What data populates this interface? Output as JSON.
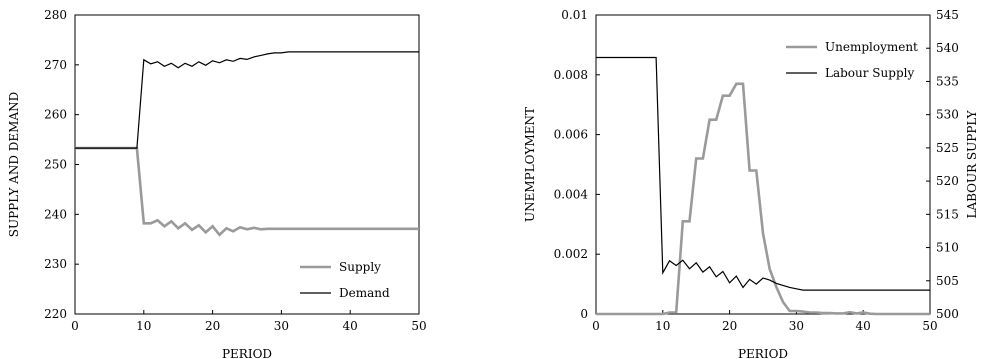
{
  "chart_data": [
    {
      "type": "line",
      "xlabel": "PERIOD",
      "ylabel": "SUPPLY AND DEMAND",
      "xlim": [
        0,
        50
      ],
      "ylim": [
        220,
        280
      ],
      "xticks": [
        "0",
        "10",
        "20",
        "30",
        "40",
        "50"
      ],
      "yticks": [
        "220",
        "230",
        "240",
        "250",
        "260",
        "270",
        "280"
      ],
      "grid": false,
      "legend_position": "bottom-right",
      "series": [
        {
          "name": "Supply",
          "color": "#9a9a9a",
          "x": [
            0,
            1,
            2,
            3,
            4,
            5,
            6,
            7,
            8,
            9,
            10,
            11,
            12,
            13,
            14,
            15,
            16,
            17,
            18,
            19,
            20,
            21,
            22,
            23,
            24,
            25,
            26,
            27,
            28,
            29,
            30,
            31,
            32,
            33,
            34,
            35,
            36,
            37,
            38,
            39,
            40,
            41,
            42,
            43,
            44,
            45,
            46,
            47,
            48,
            49,
            50
          ],
          "y": [
            253.3,
            253.3,
            253.3,
            253.3,
            253.3,
            253.3,
            253.3,
            253.3,
            253.3,
            253.3,
            238.2,
            238.2,
            238.8,
            237.6,
            238.6,
            237.2,
            238.2,
            236.9,
            237.8,
            236.4,
            237.6,
            235.9,
            237.2,
            236.6,
            237.4,
            237.0,
            237.3,
            237.0,
            237.1,
            237.1,
            237.1,
            237.1,
            237.1,
            237.1,
            237.1,
            237.1,
            237.1,
            237.1,
            237.1,
            237.1,
            237.1,
            237.1,
            237.1,
            237.1,
            237.1,
            237.1,
            237.1,
            237.1,
            237.1,
            237.1,
            237.1
          ]
        },
        {
          "name": "Demand",
          "color": "#000000",
          "x": [
            0,
            1,
            2,
            3,
            4,
            5,
            6,
            7,
            8,
            9,
            10,
            11,
            12,
            13,
            14,
            15,
            16,
            17,
            18,
            19,
            20,
            21,
            22,
            23,
            24,
            25,
            26,
            27,
            28,
            29,
            30,
            31,
            32,
            33,
            34,
            35,
            36,
            37,
            38,
            39,
            40,
            41,
            42,
            43,
            44,
            45,
            46,
            47,
            48,
            49,
            50
          ],
          "y": [
            253.3,
            253.3,
            253.3,
            253.3,
            253.3,
            253.3,
            253.3,
            253.3,
            253.3,
            253.3,
            271.0,
            270.2,
            270.6,
            269.7,
            270.3,
            269.4,
            270.3,
            269.7,
            270.6,
            269.9,
            270.8,
            270.4,
            271.0,
            270.7,
            271.3,
            271.1,
            271.6,
            271.9,
            272.2,
            272.4,
            272.4,
            272.6,
            272.6,
            272.6,
            272.6,
            272.6,
            272.6,
            272.6,
            272.6,
            272.6,
            272.6,
            272.6,
            272.6,
            272.6,
            272.6,
            272.6,
            272.6,
            272.6,
            272.6,
            272.6,
            272.6
          ]
        }
      ]
    },
    {
      "type": "line",
      "xlabel": "PERIOD",
      "ylabel": "UNEMPLOYMENT",
      "y2label": "LABOUR SUPPLY",
      "xlim": [
        0,
        50
      ],
      "ylim": [
        0,
        0.01
      ],
      "y2lim": [
        500,
        545
      ],
      "xticks": [
        "0",
        "10",
        "20",
        "30",
        "40",
        "50"
      ],
      "yticks": [
        "0",
        "0.002",
        "0.004",
        "0.006",
        "0.008",
        "0.01"
      ],
      "y2ticks": [
        "500",
        "505",
        "510",
        "515",
        "520",
        "525",
        "530",
        "535",
        "540",
        "545"
      ],
      "grid": false,
      "legend_position": "top-right",
      "series": [
        {
          "name": "Unemployment",
          "axis": "left",
          "color": "#9a9a9a",
          "x": [
            0,
            1,
            2,
            3,
            4,
            5,
            6,
            7,
            8,
            9,
            10,
            11,
            12,
            13,
            14,
            15,
            16,
            17,
            18,
            19,
            20,
            21,
            22,
            23,
            24,
            25,
            26,
            27,
            28,
            29,
            30,
            31,
            32,
            33,
            34,
            35,
            36,
            37,
            38,
            39,
            40,
            41,
            42,
            43,
            44,
            45,
            46,
            47,
            48,
            49,
            50
          ],
          "y": [
            0,
            0,
            0,
            0,
            0,
            0,
            0,
            0,
            0,
            0,
            0,
            5e-05,
            5e-05,
            0.0031,
            0.0031,
            0.0052,
            0.0052,
            0.0065,
            0.0065,
            0.0073,
            0.0073,
            0.0077,
            0.0077,
            0.0048,
            0.0048,
            0.0027,
            0.0015,
            0.0009,
            0.0004,
            0.0001,
            0.0001,
            8e-05,
            5e-05,
            5e-05,
            3e-05,
            3e-05,
            2e-05,
            2e-05,
            6e-05,
            2e-05,
            5e-05,
            1e-05,
            0,
            0,
            0,
            0,
            0,
            0,
            0,
            0,
            0
          ]
        },
        {
          "name": "Labour Supply",
          "axis": "right",
          "color": "#000000",
          "x": [
            0,
            1,
            2,
            3,
            4,
            5,
            6,
            7,
            8,
            9,
            10,
            11,
            12,
            13,
            14,
            15,
            16,
            17,
            18,
            19,
            20,
            21,
            22,
            23,
            24,
            25,
            26,
            27,
            28,
            29,
            30,
            31,
            32,
            33,
            34,
            35,
            36,
            37,
            38,
            39,
            40,
            41,
            42,
            43,
            44,
            45,
            46,
            47,
            48,
            49,
            50
          ],
          "y": [
            538.6,
            538.6,
            538.6,
            538.6,
            538.6,
            538.6,
            538.6,
            538.6,
            538.6,
            538.6,
            506.2,
            508.0,
            507.3,
            508.1,
            506.8,
            507.7,
            506.3,
            507.1,
            505.6,
            506.4,
            504.7,
            505.7,
            504.0,
            505.2,
            504.5,
            505.4,
            505.1,
            504.6,
            504.3,
            504.0,
            503.8,
            503.6,
            503.6,
            503.6,
            503.6,
            503.6,
            503.6,
            503.6,
            503.6,
            503.6,
            503.6,
            503.6,
            503.6,
            503.6,
            503.6,
            503.6,
            503.6,
            503.6,
            503.6,
            503.6,
            503.6
          ]
        }
      ]
    }
  ]
}
